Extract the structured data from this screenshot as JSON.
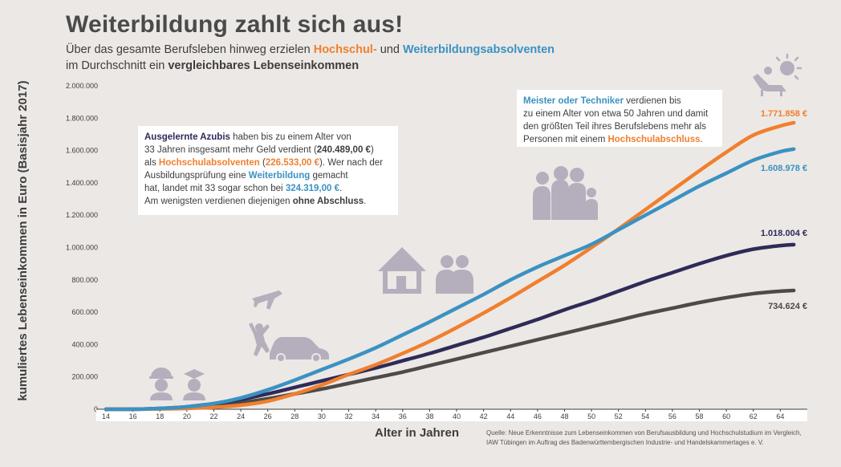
{
  "header": {
    "title": "Weiterbildung zahlt sich aus!",
    "line1_a": "Über das gesamte Berufsleben hinweg erzielen",
    "line1_b": "Hochschul-",
    "line1_c": "und",
    "line1_d": "Weiterbildungsabsolventen",
    "line2_a": "im Durchschnitt ein",
    "line2_b": "vergleichbares Lebenseinkommen"
  },
  "box1": {
    "t1": "Ausgelernte Azubis",
    "t2": " haben bis zu einem Alter von",
    "t3": "33 Jahren insgesamt mehr Geld verdient (",
    "t4": "240.489,00 €",
    "t5": ")",
    "t6": "als ",
    "t7": "Hochschulabsolventen",
    "t8": " (",
    "t9": "226.533,00 €",
    "t10": "). Wer nach der",
    "t11": "Ausbildungsprüfung eine ",
    "t12": "Weiterbildung",
    "t13": " gemacht",
    "t14": "hat, landet mit 33 sogar schon bei ",
    "t15": "324.319,00 €",
    "t16": ".",
    "t17": "Am wenigsten verdienen diejenigen ",
    "t18": "ohne Abschluss",
    "t19": "."
  },
  "box2": {
    "t1": "Meister oder Techniker",
    "t2": " verdienen bis",
    "t3": "zu einem Alter von etwa 50 Jahren und damit",
    "t4": "den größten Teil ihres Berufslebens mehr als",
    "t5": "Personen mit einem ",
    "t6": "Hochschulabschluss",
    "t7": "."
  },
  "source": {
    "line1": "Quelle: Neue Erkenntnisse zum Lebenseinkommen von Berufsausbildung und Hochschulstudium im Vergleich,",
    "line2": "IAW Tübingen im Auftrag des Badenwürttembergischen Industrie- und Handelskammertages e. V."
  },
  "colors": {
    "orange": "#f07f2e",
    "blue": "#3a92c2",
    "navy": "#2e2b58",
    "gray": "#4d4a47",
    "icon": "#b4aebd"
  },
  "icons": [
    "worker-icon",
    "graduate-icon",
    "airplane-icon",
    "person-jumping-icon",
    "car-icon",
    "house-icon",
    "couple-icon",
    "family-icon",
    "sun-lounger-icon"
  ],
  "chart_data": {
    "type": "line",
    "xlabel": "Alter in Jahren",
    "ylabel": "kumuliertes Lebenseinkommen in Euro (Basisjahr 2017)",
    "xlim": [
      14,
      66
    ],
    "ylim": [
      0,
      2000000
    ],
    "x_ticks": [
      "14",
      "16",
      "18",
      "20",
      "22",
      "24",
      "26",
      "28",
      "30",
      "32",
      "34",
      "36",
      "38",
      "40",
      "42",
      "44",
      "46",
      "48",
      "50",
      "52",
      "54",
      "56",
      "58",
      "60",
      "62",
      "64"
    ],
    "y_ticks": [
      "0",
      "200.000",
      "400.000",
      "600.000",
      "800.000",
      "1.000.000",
      "1.200.000",
      "1.400.000",
      "1.600.000",
      "1.800.000",
      "2.000.000"
    ],
    "x": [
      14,
      16,
      18,
      20,
      22,
      24,
      26,
      28,
      30,
      32,
      34,
      36,
      38,
      40,
      42,
      44,
      46,
      48,
      50,
      52,
      54,
      56,
      58,
      60,
      62,
      64,
      65
    ],
    "series": [
      {
        "name": "Hochschulabsolventen",
        "color": "#f07f2e",
        "end_label": "1.771.858 €",
        "values": [
          0,
          0,
          2000,
          5000,
          12000,
          25000,
          50000,
          95000,
          150000,
          215000,
          275000,
          345000,
          420000,
          505000,
          595000,
          690000,
          790000,
          890000,
          1000000,
          1115000,
          1235000,
          1355000,
          1475000,
          1590000,
          1695000,
          1752000,
          1771858
        ]
      },
      {
        "name": "Meister oder Techniker",
        "color": "#3a92c2",
        "end_label": "1.608.978 €",
        "values": [
          0,
          0,
          5000,
          15000,
          35000,
          70000,
          120000,
          180000,
          245000,
          310000,
          380000,
          460000,
          540000,
          625000,
          710000,
          800000,
          880000,
          950000,
          1020000,
          1110000,
          1200000,
          1290000,
          1380000,
          1460000,
          1540000,
          1593000,
          1608978
        ]
      },
      {
        "name": "Ausgelernte Azubis",
        "color": "#2e2b58",
        "end_label": "1.018.004 €",
        "values": [
          0,
          0,
          5000,
          15000,
          35000,
          60000,
          95000,
          135000,
          175000,
          215000,
          255000,
          300000,
          345000,
          395000,
          445000,
          500000,
          555000,
          615000,
          670000,
          730000,
          790000,
          845000,
          900000,
          950000,
          990000,
          1012000,
          1018004
        ]
      },
      {
        "name": "ohne Abschluss",
        "color": "#4d4a47",
        "end_label": "734.624 €",
        "values": [
          0,
          0,
          3000,
          10000,
          22000,
          40000,
          65000,
          95000,
          125000,
          160000,
          195000,
          230000,
          270000,
          310000,
          350000,
          390000,
          430000,
          470000,
          510000,
          550000,
          590000,
          625000,
          660000,
          690000,
          715000,
          730000,
          734624
        ]
      }
    ]
  }
}
